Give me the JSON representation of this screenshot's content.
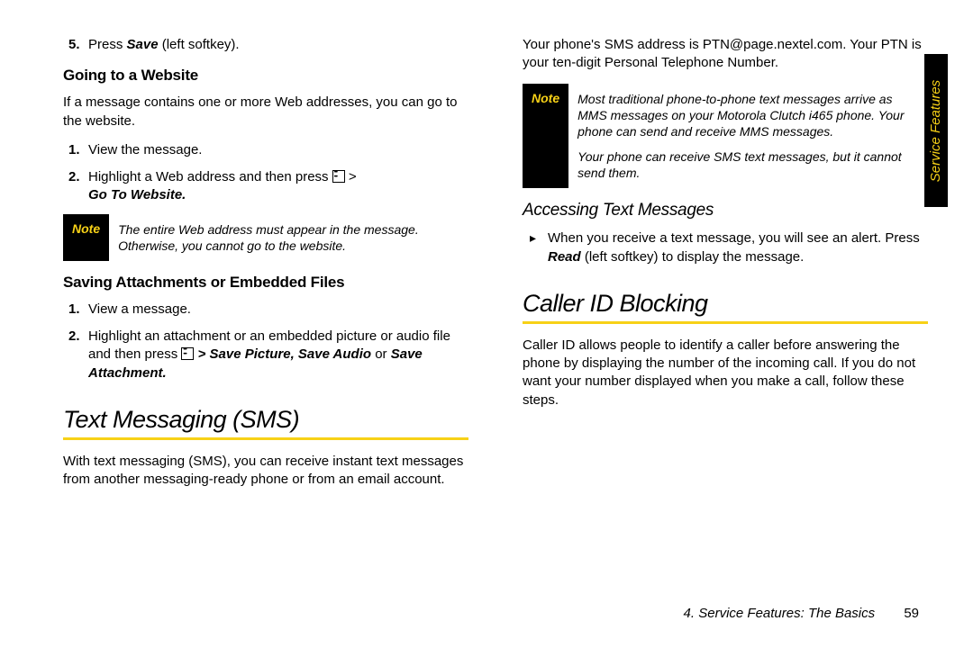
{
  "colors": {
    "accent": "#f7d117",
    "black": "#000000",
    "white": "#ffffff"
  },
  "left": {
    "item5_prefix": "5.",
    "item5_a": "Press ",
    "item5_b": "Save",
    "item5_c": " (left softkey).",
    "goingToWebsite": "Going to a Website",
    "goingPara": "If a message contains one or more Web addresses, you can go to the website.",
    "gw1_prefix": "1.",
    "gw1": "View the message.",
    "gw2_prefix": "2.",
    "gw2_a": "Highlight a Web address and then press ",
    "gw2_b": " > ",
    "gw2_c": "Go To Website.",
    "note1_label": "Note",
    "note1_body": "The entire Web address must appear in the message. Otherwise, you cannot go to the website.",
    "savingHeader": "Saving Attachments or Embedded Files",
    "sv1_prefix": "1.",
    "sv1": "View a message.",
    "sv2_prefix": "2.",
    "sv2_a": "Highlight an attachment or an embedded picture or audio file and then press ",
    "sv2_b": " > ",
    "sv2_c": "Save Picture, Save Audio",
    "sv2_d": " or ",
    "sv2_e": "Save Attachment.",
    "smsHeader": "Text Messaging (SMS)",
    "smsPara": "With text messaging (SMS), you can receive instant text messages from another messaging-ready phone or from an email account."
  },
  "right": {
    "addrPara": "Your phone's SMS address is PTN@page.nextel.com. Your PTN is your ten-digit Personal Telephone Number.",
    "note2_label": "Note",
    "note2_p1": "Most traditional phone-to-phone text messages arrive as MMS messages on your Motorola Clutch i465 phone. Your phone can send and receive MMS messages.",
    "note2_p2": "Your phone can receive SMS text messages, but it cannot send them.",
    "accessHeader": "Accessing Text Messages",
    "access_a": "When you receive a text message, you will see an alert. Press ",
    "access_b": "Read",
    "access_c": " (left softkey) to display the message.",
    "callerHeader": "Caller ID Blocking",
    "callerPara": "Caller ID allows people to identify a caller before answering the phone by displaying the number of the incoming call. If you do not want your number displayed when you make a call, follow these steps."
  },
  "sideTab": "Service Features",
  "footerText": "4. Service Features: The Basics",
  "pageNumber": "59"
}
